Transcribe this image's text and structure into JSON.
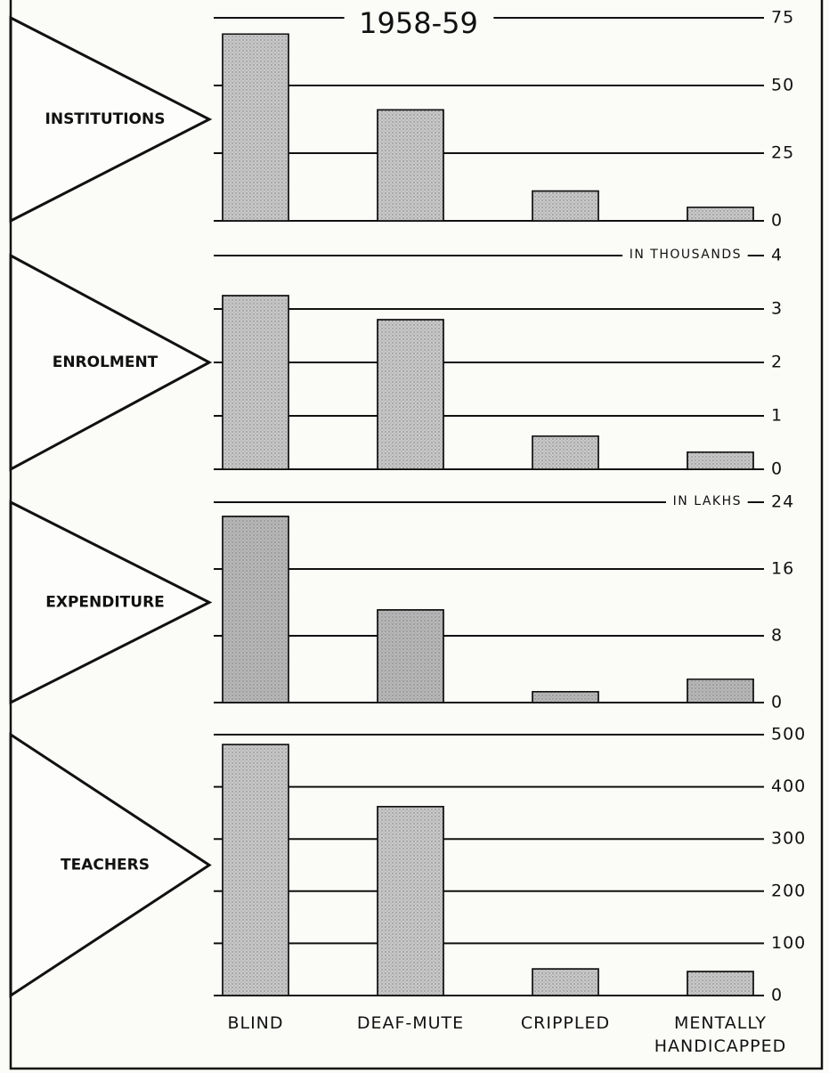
{
  "chart_data": [
    {
      "type": "bar",
      "title": "1958-59",
      "label": "INSTITUTIONS",
      "color": "#c9c9c9",
      "values": [
        69,
        41,
        11,
        5
      ],
      "ylim": [
        0,
        75
      ],
      "yticks": [
        0,
        25,
        50,
        75
      ],
      "grid": true
    },
    {
      "type": "bar",
      "label": "ENROLMENT",
      "y_label": "IN THOUSANDS",
      "color": "#c9c9c9",
      "values": [
        3.25,
        2.8,
        0.62,
        0.32
      ],
      "ylim": [
        0,
        4
      ],
      "yticks": [
        0,
        1,
        2,
        3,
        4
      ],
      "grid": true
    },
    {
      "type": "bar",
      "label": "EXPENDITURE",
      "y_label": "IN LAKHS",
      "color": "#b8b8b8",
      "values": [
        22.3,
        11.1,
        1.3,
        2.8
      ],
      "ylim": [
        0,
        24
      ],
      "yticks": [
        0,
        8,
        16,
        24
      ],
      "grid": true
    },
    {
      "type": "bar",
      "label": "TEACHERS",
      "color": "#c9c9c9",
      "categories": [
        "BLIND",
        "DEAF-MUTE",
        "CRIPPLED",
        "MENTALLY HANDICAPPED"
      ],
      "values": [
        481,
        362,
        51,
        46
      ],
      "ylim": [
        0,
        500
      ],
      "yticks": [
        0,
        100,
        200,
        300,
        400,
        500
      ],
      "grid": true
    }
  ]
}
